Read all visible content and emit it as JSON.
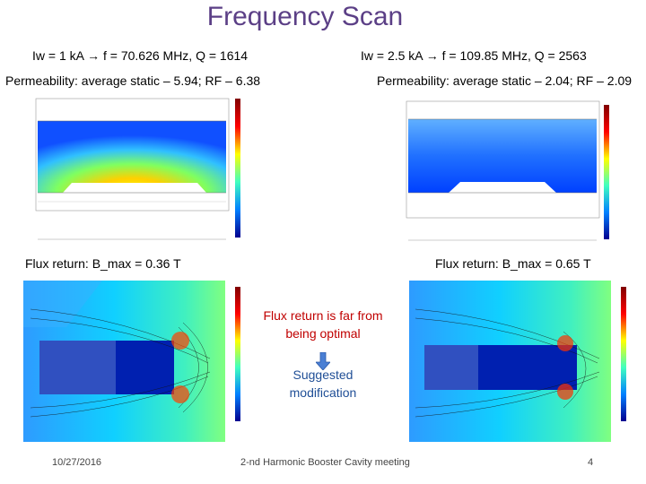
{
  "slide": {
    "title": "Frequency Scan",
    "left_case": {
      "condition": "Iw = 1 kA → f = 70.626 MHz, Q = 1614",
      "permeability": "Permeability: average static – 5.94; RF – 6.38",
      "flux": "Flux return: B_max = 0.36 T"
    },
    "right_case": {
      "condition": "Iw = 2.5 kA → f = 109.85 MHz, Q = 2563",
      "permeability": "Permeability: average static – 2.04; RF – 2.09",
      "flux": "Flux return: B_max = 0.65 T"
    },
    "note": "Flux return is far from being optimal",
    "suggestion": "Suggested modification",
    "footer": {
      "date": "10/27/2016",
      "meeting": "2-nd Harmonic Booster Cavity meeting",
      "page": "4"
    }
  },
  "colors": {
    "title": "#5b3f86",
    "note": "#c00000",
    "suggestion": "#1f4e96",
    "arrow": "#4a7fd4"
  },
  "icons": {
    "arrow": "down-arrow-icon"
  }
}
